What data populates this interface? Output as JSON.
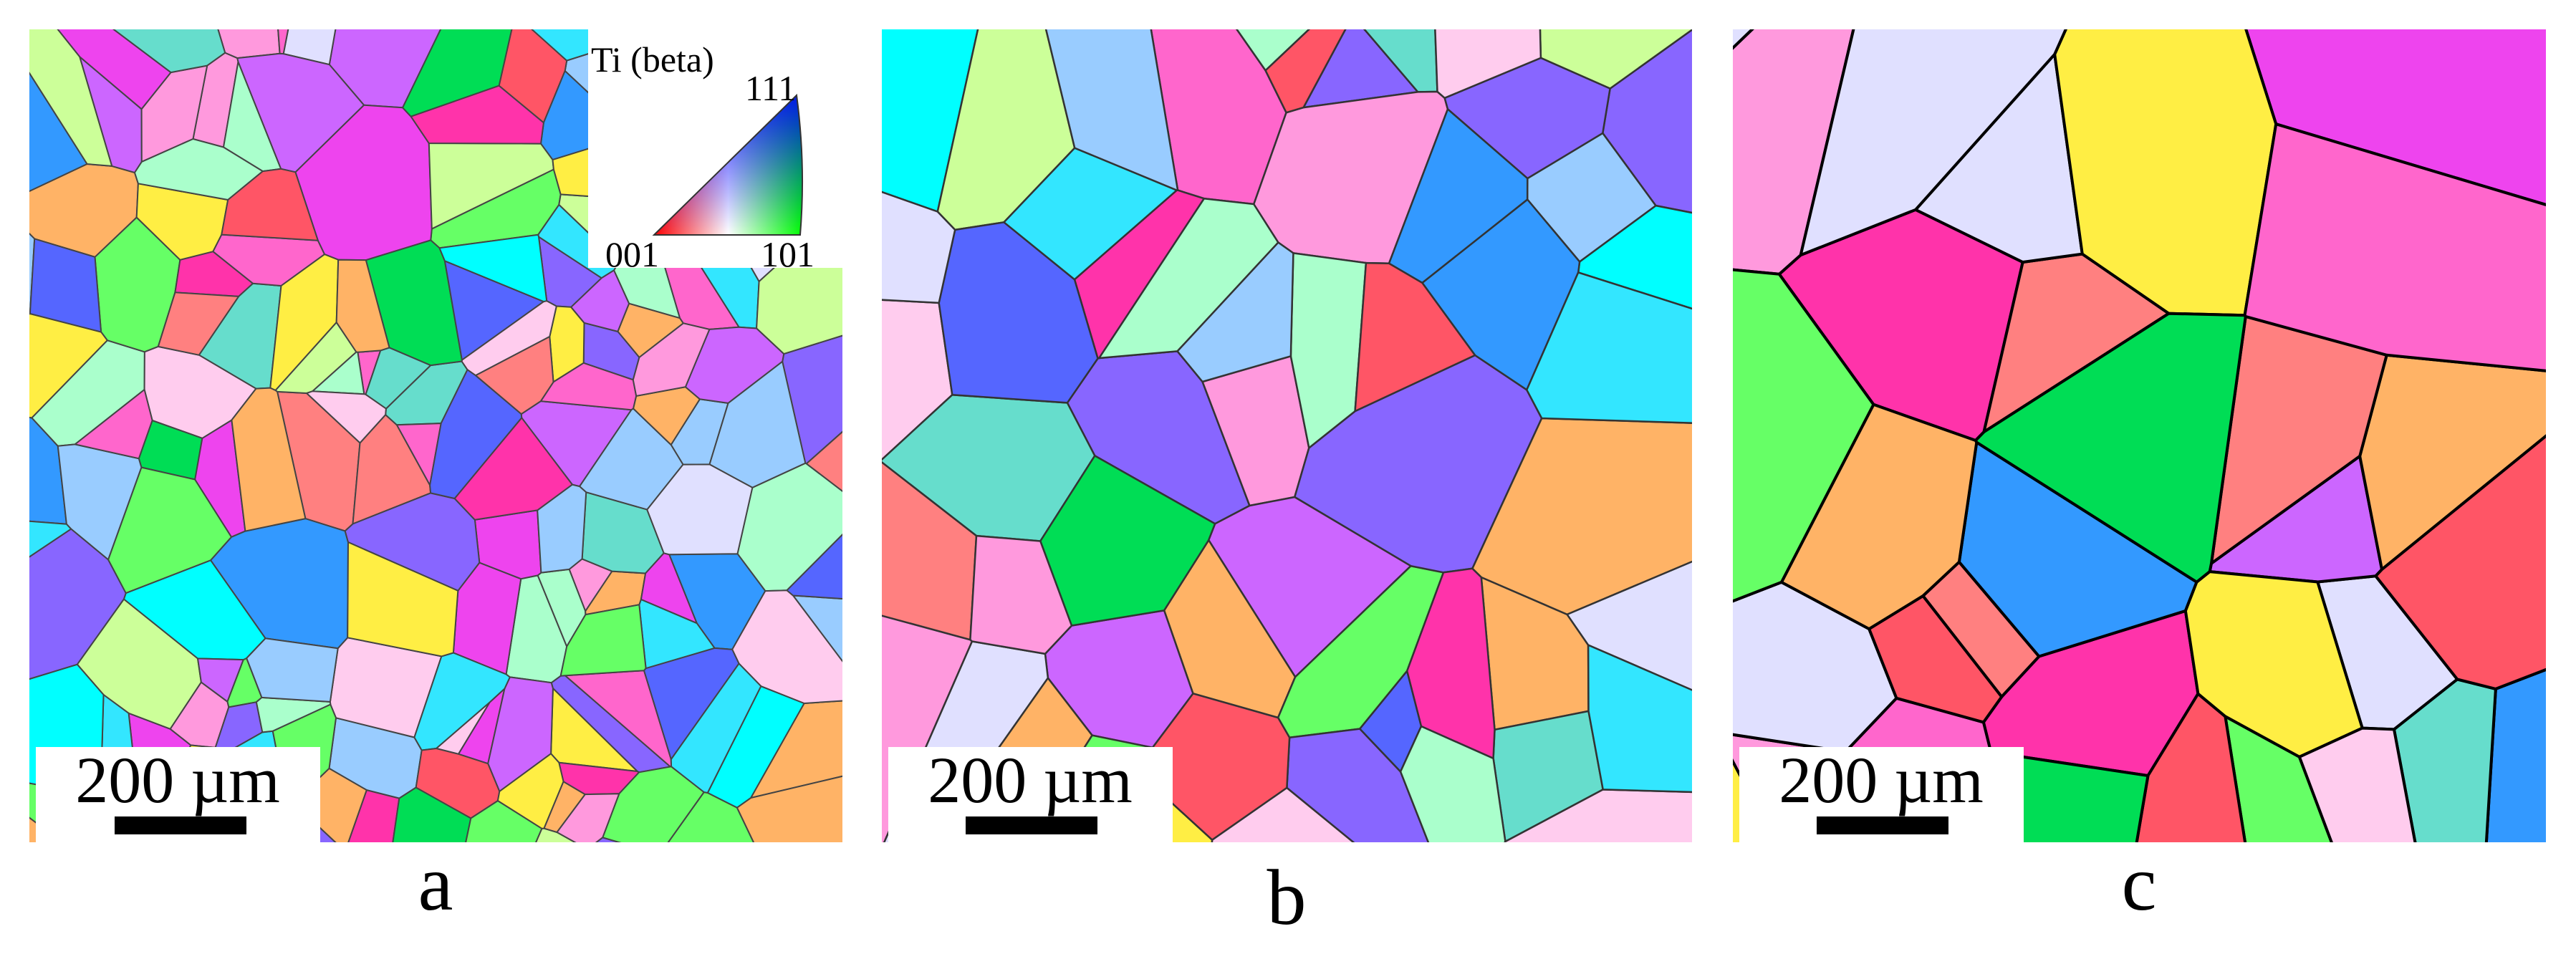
{
  "legend": {
    "title": "Ti (beta)",
    "corner_111": "111",
    "corner_001": "001",
    "corner_101": "101"
  },
  "panels": [
    {
      "label": "a",
      "scale_bar": "200 µm"
    },
    {
      "label": "b",
      "scale_bar": "200 µm"
    },
    {
      "label": "c",
      "scale_bar": "200 µm"
    }
  ]
}
